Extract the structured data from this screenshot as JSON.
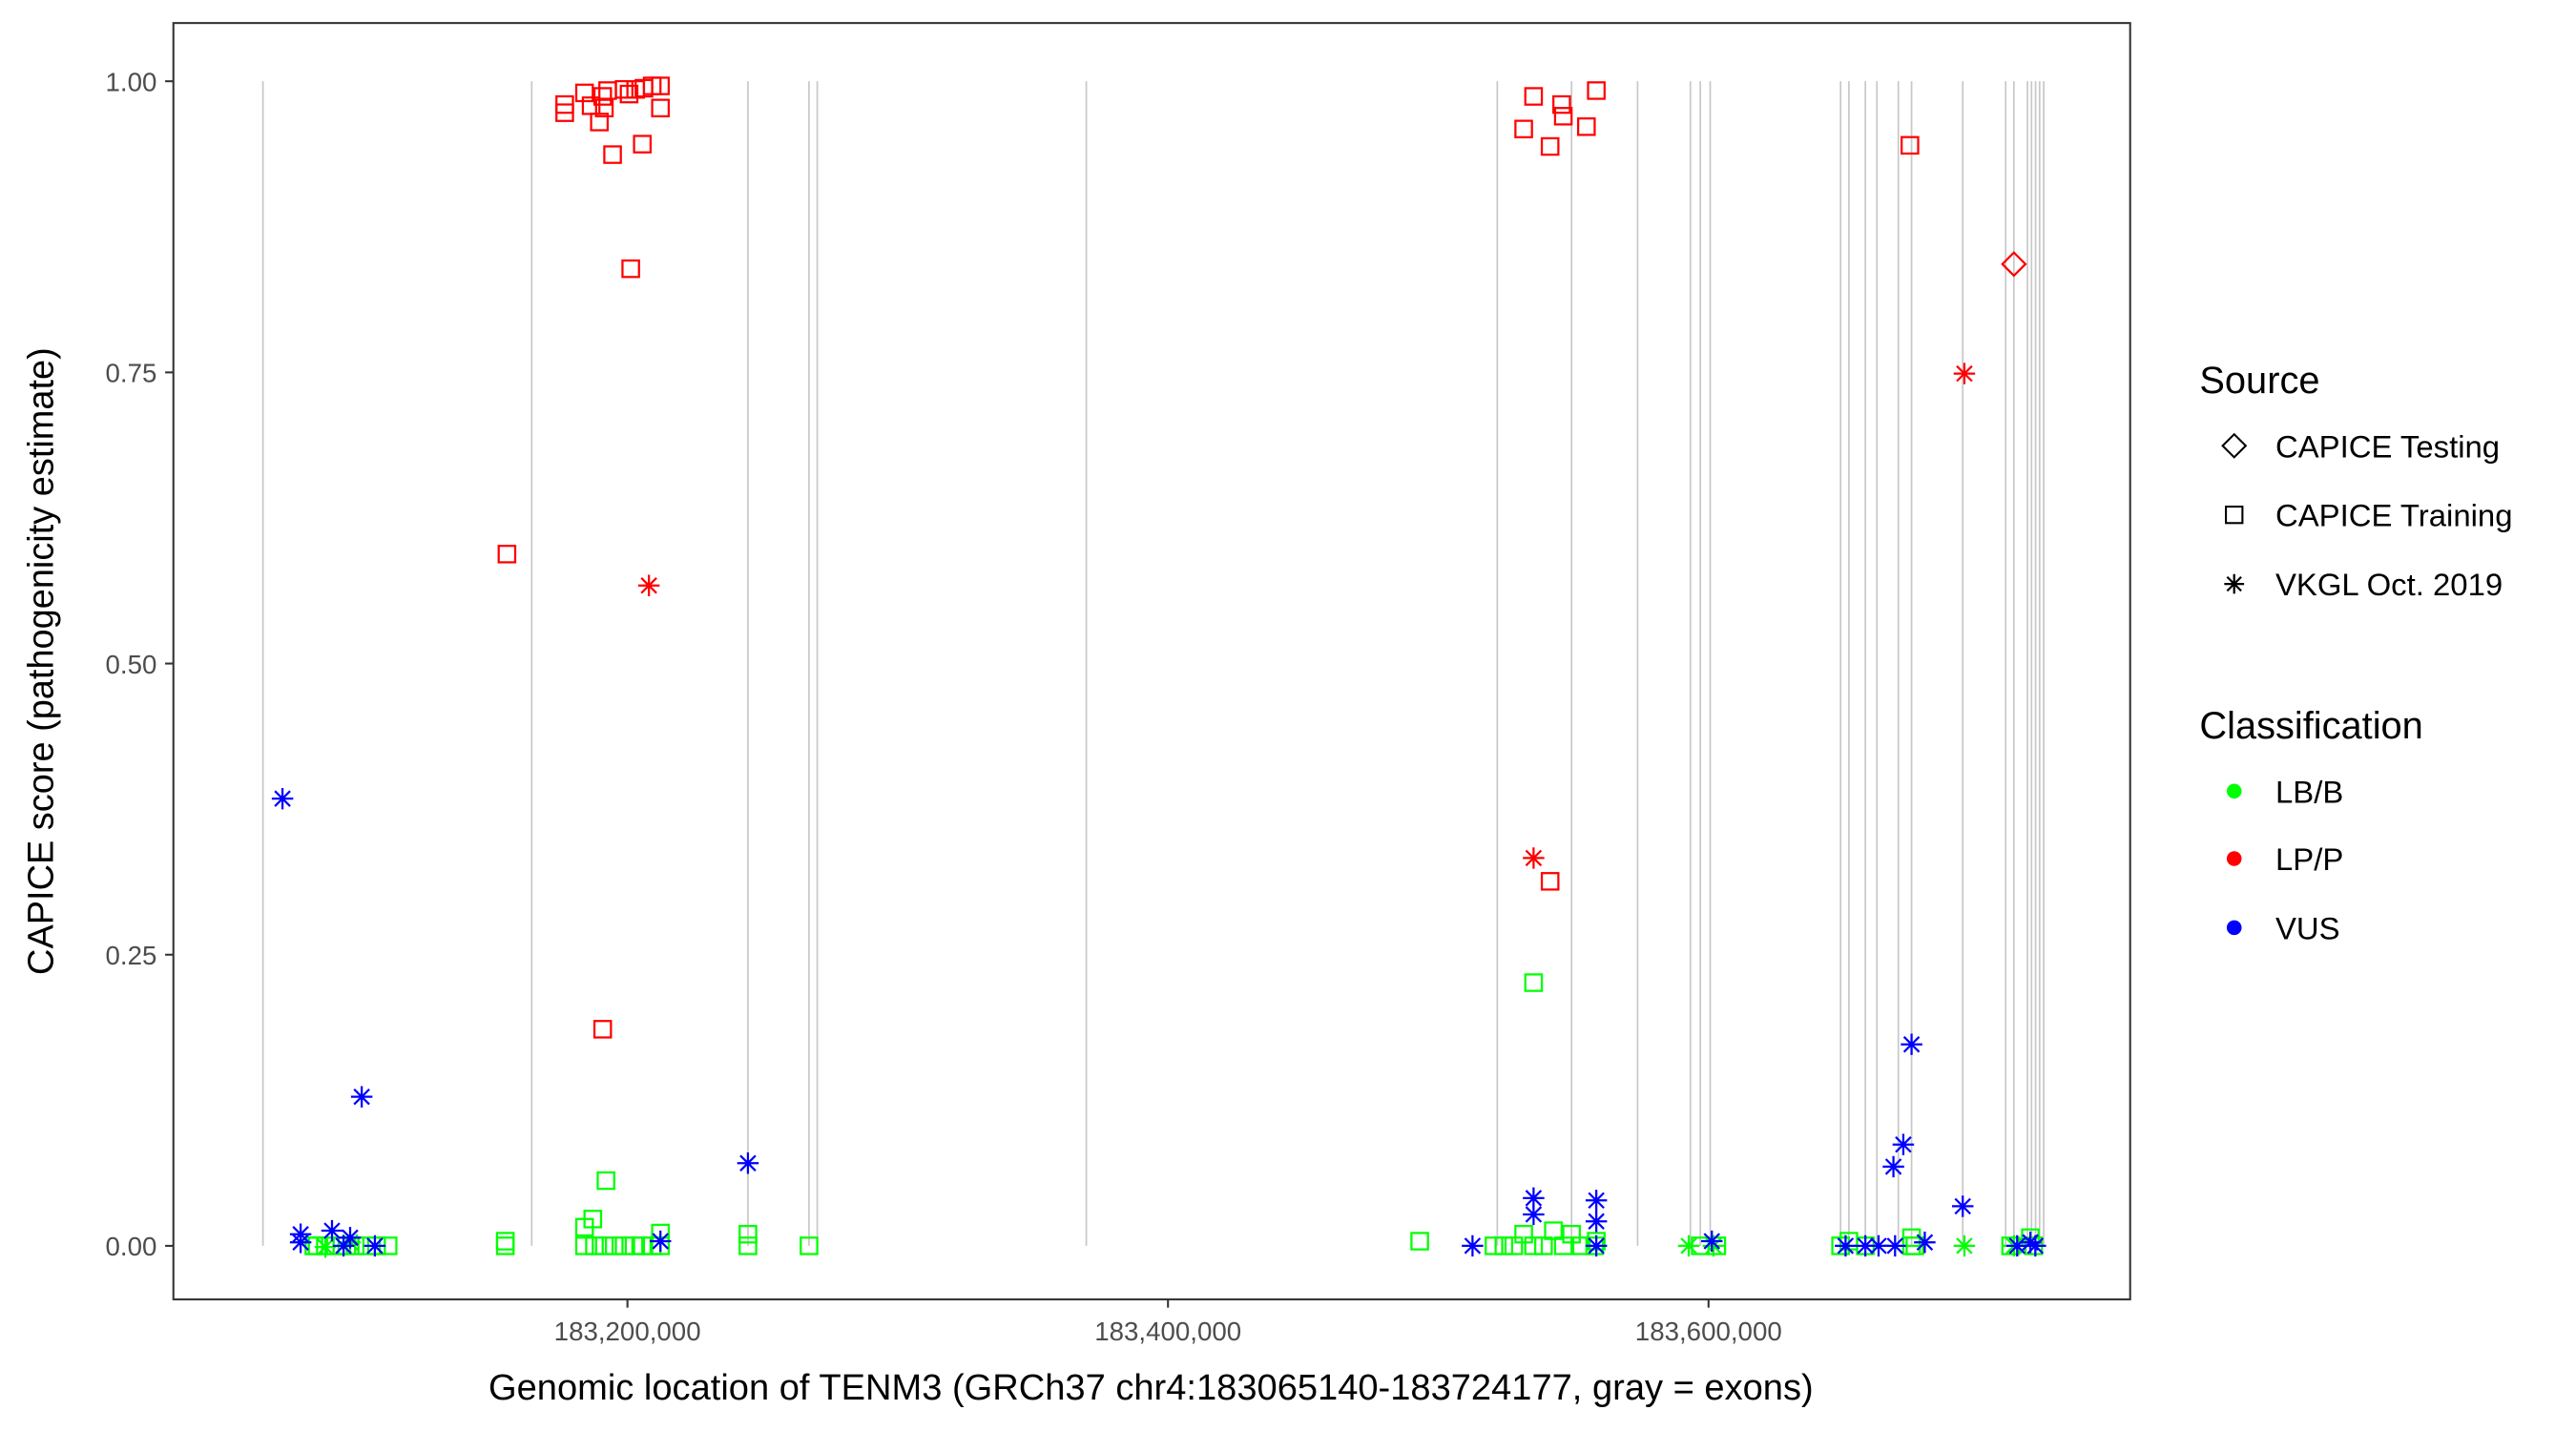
{
  "chart_data": {
    "type": "scatter",
    "xlabel": "Genomic location of TENM3 (GRCh37 chr4:183065140-183724177, gray = exons)",
    "ylabel": "CAPICE score (pathogenicity estimate)",
    "xlim": [
      183032000,
      183756000
    ],
    "ylim": [
      -0.046,
      1.05
    ],
    "x_ticks": [
      183200000,
      183400000,
      183600000
    ],
    "x_tick_labels": [
      "183,200,000",
      "183,400,000",
      "183,600,000"
    ],
    "y_ticks": [
      0,
      0.25,
      0.5,
      0.75,
      1.0
    ],
    "y_tick_labels": [
      "0.00",
      "0.25",
      "0.50",
      "0.75",
      "1.00"
    ],
    "grid": false,
    "legend_placement": "right",
    "exon_color": "#c8c8c8",
    "exons": [
      183065140,
      183164580,
      183244580,
      183267180,
      183270230,
      183369775,
      183521840,
      183549320,
      183573750,
      183593290,
      183596955,
      183600620,
      183648865,
      183651920,
      183658030,
      183662300,
      183670240,
      183675125,
      183694060,
      183709935,
      183712990,
      183718000,
      183719500,
      183721000,
      183722500,
      183724000
    ],
    "legend": {
      "source": {
        "title": "Source",
        "items": [
          {
            "label": "CAPICE Testing",
            "shape": "diamond"
          },
          {
            "label": "CAPICE Training",
            "shape": "square"
          },
          {
            "label": "VKGL Oct. 2019",
            "shape": "asterisk"
          }
        ]
      },
      "classification": {
        "title": "Classification",
        "items": [
          {
            "label": "LB/B",
            "color": "#00ff00"
          },
          {
            "label": "LP/P",
            "color": "#ff0000"
          },
          {
            "label": "VUS",
            "color": "#0000ff"
          }
        ]
      }
    },
    "point_fields": [
      "position",
      "score",
      "source_index",
      "classification_index"
    ],
    "points": [
      [
        183176790,
        0.973,
        1,
        1
      ],
      [
        183176790,
        0.98,
        1,
        1
      ],
      [
        183184120,
        0.99,
        1,
        1
      ],
      [
        183186565,
        0.979,
        1,
        1
      ],
      [
        183189620,
        0.965,
        1,
        1
      ],
      [
        183190840,
        0.987,
        1,
        1
      ],
      [
        183191450,
        0.977,
        1,
        1
      ],
      [
        183192670,
        0.992,
        1,
        1
      ],
      [
        183194500,
        0.937,
        1,
        1
      ],
      [
        183198780,
        0.993,
        1,
        1
      ],
      [
        183200610,
        0.989,
        1,
        1
      ],
      [
        183201220,
        0.839,
        1,
        1
      ],
      [
        183203050,
        0.993,
        1,
        1
      ],
      [
        183205500,
        0.946,
        1,
        1
      ],
      [
        183206100,
        0.994,
        1,
        1
      ],
      [
        183209160,
        0.996,
        1,
        1
      ],
      [
        183212210,
        0.996,
        1,
        1
      ],
      [
        183212210,
        0.977,
        1,
        1
      ],
      [
        183155420,
        0.594,
        1,
        1
      ],
      [
        183190840,
        0.186,
        1,
        1
      ],
      [
        183207940,
        0.567,
        2,
        1
      ],
      [
        183531610,
        0.959,
        1,
        1
      ],
      [
        183535270,
        0.987,
        1,
        1
      ],
      [
        183541380,
        0.944,
        1,
        1
      ],
      [
        183545660,
        0.98,
        1,
        1
      ],
      [
        183546270,
        0.97,
        1,
        1
      ],
      [
        183554820,
        0.961,
        1,
        1
      ],
      [
        183558480,
        0.992,
        1,
        1
      ],
      [
        183674510,
        0.945,
        1,
        1
      ],
      [
        183541380,
        0.313,
        1,
        1
      ],
      [
        183535270,
        0.333,
        2,
        1
      ],
      [
        183694670,
        0.749,
        2,
        1
      ],
      [
        183712990,
        0.843,
        0,
        1
      ],
      [
        183535270,
        0.226,
        1,
        0
      ],
      [
        183192060,
        0.056,
        1,
        0
      ],
      [
        183187170,
        0.023,
        1,
        0
      ],
      [
        183184120,
        0.016,
        1,
        0
      ],
      [
        183493140,
        0.004,
        1,
        0
      ],
      [
        183083970,
        0,
        1,
        0
      ],
      [
        183085170,
        0,
        1,
        0
      ],
      [
        183088240,
        0,
        1,
        0
      ],
      [
        183091905,
        0,
        1,
        0
      ],
      [
        183096180,
        0,
        1,
        0
      ],
      [
        183099240,
        0,
        1,
        0
      ],
      [
        183103510,
        0,
        1,
        0
      ],
      [
        183107170,
        0,
        1,
        0
      ],
      [
        183111450,
        0,
        1,
        0
      ],
      [
        183154810,
        0.004,
        1,
        0
      ],
      [
        183154810,
        0,
        1,
        0
      ],
      [
        183184120,
        0,
        1,
        0
      ],
      [
        183187790,
        0,
        1,
        0
      ],
      [
        183191450,
        0,
        1,
        0
      ],
      [
        183195110,
        0,
        1,
        0
      ],
      [
        183198780,
        0,
        1,
        0
      ],
      [
        183202440,
        0,
        1,
        0
      ],
      [
        183205500,
        0,
        1,
        0
      ],
      [
        183209160,
        0,
        1,
        0
      ],
      [
        183212210,
        0,
        1,
        0
      ],
      [
        183212210,
        0.011,
        1,
        0
      ],
      [
        183244580,
        0.01,
        1,
        0
      ],
      [
        183244580,
        0,
        1,
        0
      ],
      [
        183267180,
        0,
        1,
        0
      ],
      [
        183520620,
        0,
        1,
        0
      ],
      [
        183524280,
        0,
        1,
        0
      ],
      [
        183527940,
        0,
        1,
        0
      ],
      [
        183531610,
        0.01,
        1,
        0
      ],
      [
        183535270,
        0,
        1,
        0
      ],
      [
        183538940,
        0,
        1,
        0
      ],
      [
        183542600,
        0.013,
        1,
        0
      ],
      [
        183546270,
        0,
        1,
        0
      ],
      [
        183549320,
        0.01,
        1,
        0
      ],
      [
        183552990,
        0,
        1,
        0
      ],
      [
        183557870,
        0,
        1,
        0
      ],
      [
        183558480,
        0.004,
        1,
        0
      ],
      [
        183596955,
        0,
        1,
        0
      ],
      [
        183603060,
        0,
        1,
        0
      ],
      [
        183648865,
        0,
        1,
        0
      ],
      [
        183651920,
        0.004,
        1,
        0
      ],
      [
        183658030,
        0,
        1,
        0
      ],
      [
        183675125,
        0,
        1,
        0
      ],
      [
        183675125,
        0.007,
        1,
        0
      ],
      [
        183676350,
        0,
        1,
        0
      ],
      [
        183711770,
        0,
        1,
        0
      ],
      [
        183719090,
        0.007,
        1,
        0
      ],
      [
        183720310,
        0,
        1,
        0
      ],
      [
        183088240,
        -0.001,
        2,
        0
      ],
      [
        183097400,
        0.003,
        2,
        0
      ],
      [
        183592680,
        0,
        2,
        0
      ],
      [
        183601840,
        0,
        2,
        0
      ],
      [
        183694670,
        0,
        2,
        0
      ],
      [
        183712990,
        0,
        2,
        0
      ],
      [
        183072370,
        0.384,
        2,
        2
      ],
      [
        183101680,
        0.128,
        2,
        2
      ],
      [
        183079080,
        0.01,
        2,
        2
      ],
      [
        183079080,
        0.003,
        2,
        2
      ],
      [
        183090690,
        0.013,
        2,
        2
      ],
      [
        183094960,
        0,
        2,
        2
      ],
      [
        183097400,
        0.007,
        2,
        2
      ],
      [
        183106560,
        0,
        2,
        2
      ],
      [
        183212210,
        0.004,
        2,
        2
      ],
      [
        183244580,
        0.071,
        2,
        2
      ],
      [
        183512680,
        0,
        2,
        2
      ],
      [
        183535270,
        0.041,
        2,
        2
      ],
      [
        183535270,
        0.027,
        2,
        2
      ],
      [
        183558480,
        0.039,
        2,
        2
      ],
      [
        183558480,
        0.021,
        2,
        2
      ],
      [
        183558480,
        0,
        2,
        2
      ],
      [
        183601230,
        0.004,
        2,
        2
      ],
      [
        183650700,
        0,
        2,
        2
      ],
      [
        183658030,
        0,
        2,
        2
      ],
      [
        183662910,
        0,
        2,
        2
      ],
      [
        183669020,
        0,
        2,
        2
      ],
      [
        183680010,
        0.003,
        2,
        2
      ],
      [
        183675125,
        0.173,
        2,
        2
      ],
      [
        183672070,
        0.087,
        2,
        2
      ],
      [
        183668410,
        0.068,
        2,
        2
      ],
      [
        183694060,
        0.034,
        2,
        2
      ],
      [
        183714190,
        0,
        2,
        2
      ],
      [
        183719090,
        0.003,
        2,
        2
      ],
      [
        183720920,
        0,
        2,
        2
      ]
    ]
  }
}
